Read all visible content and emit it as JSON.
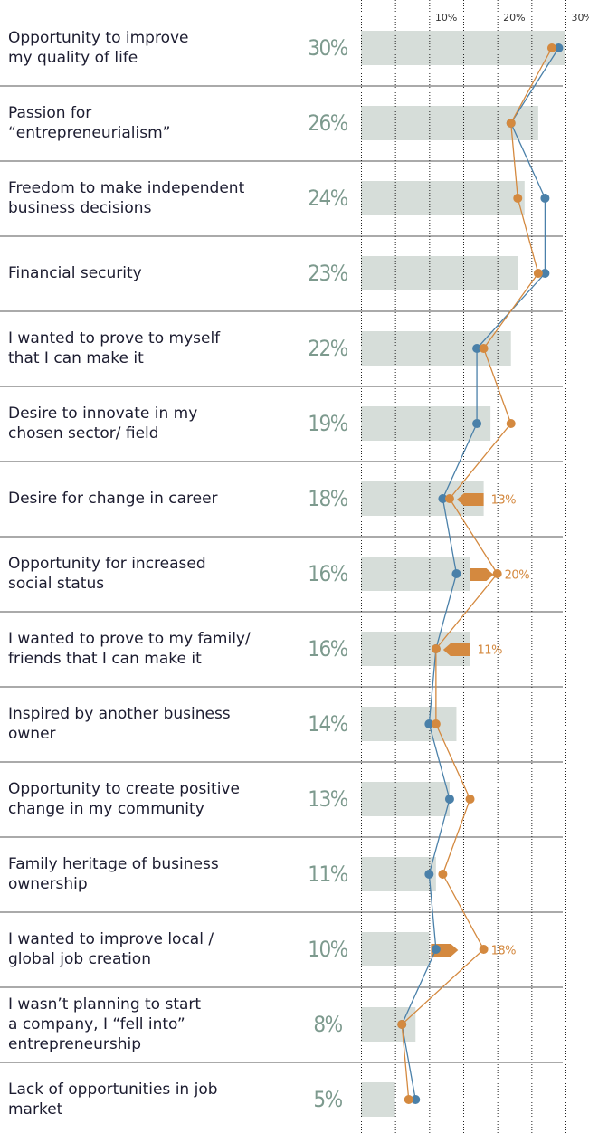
{
  "chart_data": {
    "type": "bar",
    "categories": [
      "Opportunity to improve\nmy quality of life",
      "Passion for\n“entrepreneurialism”",
      "Freedom to make independent\nbusiness decisions",
      "Financial security",
      "I wanted to prove to myself\nthat I can make it",
      "Desire to innovate in my\nchosen sector/ field",
      "Desire for change in career",
      "Opportunity for increased\nsocial status",
      "I wanted to prove to my family/\nfriends that I can make it",
      "Inspired by another business\nowner",
      "Opportunity to create positive\nchange in my community",
      "Family heritage of business\nownership",
      "I wanted to improve local /\nglobal job creation",
      "I wasn’t planning to start\na company, I “fell into”\nentrepreneurship",
      "Lack of opportunities in job\nmarket"
    ],
    "values": [
      30,
      26,
      24,
      23,
      22,
      19,
      18,
      16,
      16,
      14,
      13,
      11,
      10,
      8,
      5
    ],
    "value_labels": [
      "30%",
      "26%",
      "24%",
      "23%",
      "22%",
      "19%",
      "18%",
      "16%",
      "16%",
      "14%",
      "13%",
      "11%",
      "10%",
      "8%",
      "5%"
    ],
    "color": "#d6ddd9",
    "series": [
      {
        "color": "#4a80a9",
        "values": [
          29,
          22,
          27,
          27,
          17,
          17,
          12,
          14,
          11,
          10,
          13,
          10,
          11,
          6,
          8
        ]
      },
      {
        "color": "#d4893f",
        "values": [
          28,
          22,
          23,
          26,
          18,
          22,
          13,
          20,
          11,
          11,
          16,
          12,
          18,
          6,
          7
        ],
        "value_labels": [
          null,
          null,
          null,
          null,
          null,
          null,
          "13%",
          "20%",
          "11%",
          null,
          null,
          null,
          "18%",
          null,
          null
        ]
      }
    ],
    "xlim": [
      0,
      30
    ],
    "xticks": [
      0,
      5,
      {
        "value": 10,
        "label": "10%"
      },
      15,
      {
        "value": 20,
        "label": "20%"
      },
      25,
      {
        "value": 30,
        "label": "30%"
      }
    ],
    "grid": true
  }
}
